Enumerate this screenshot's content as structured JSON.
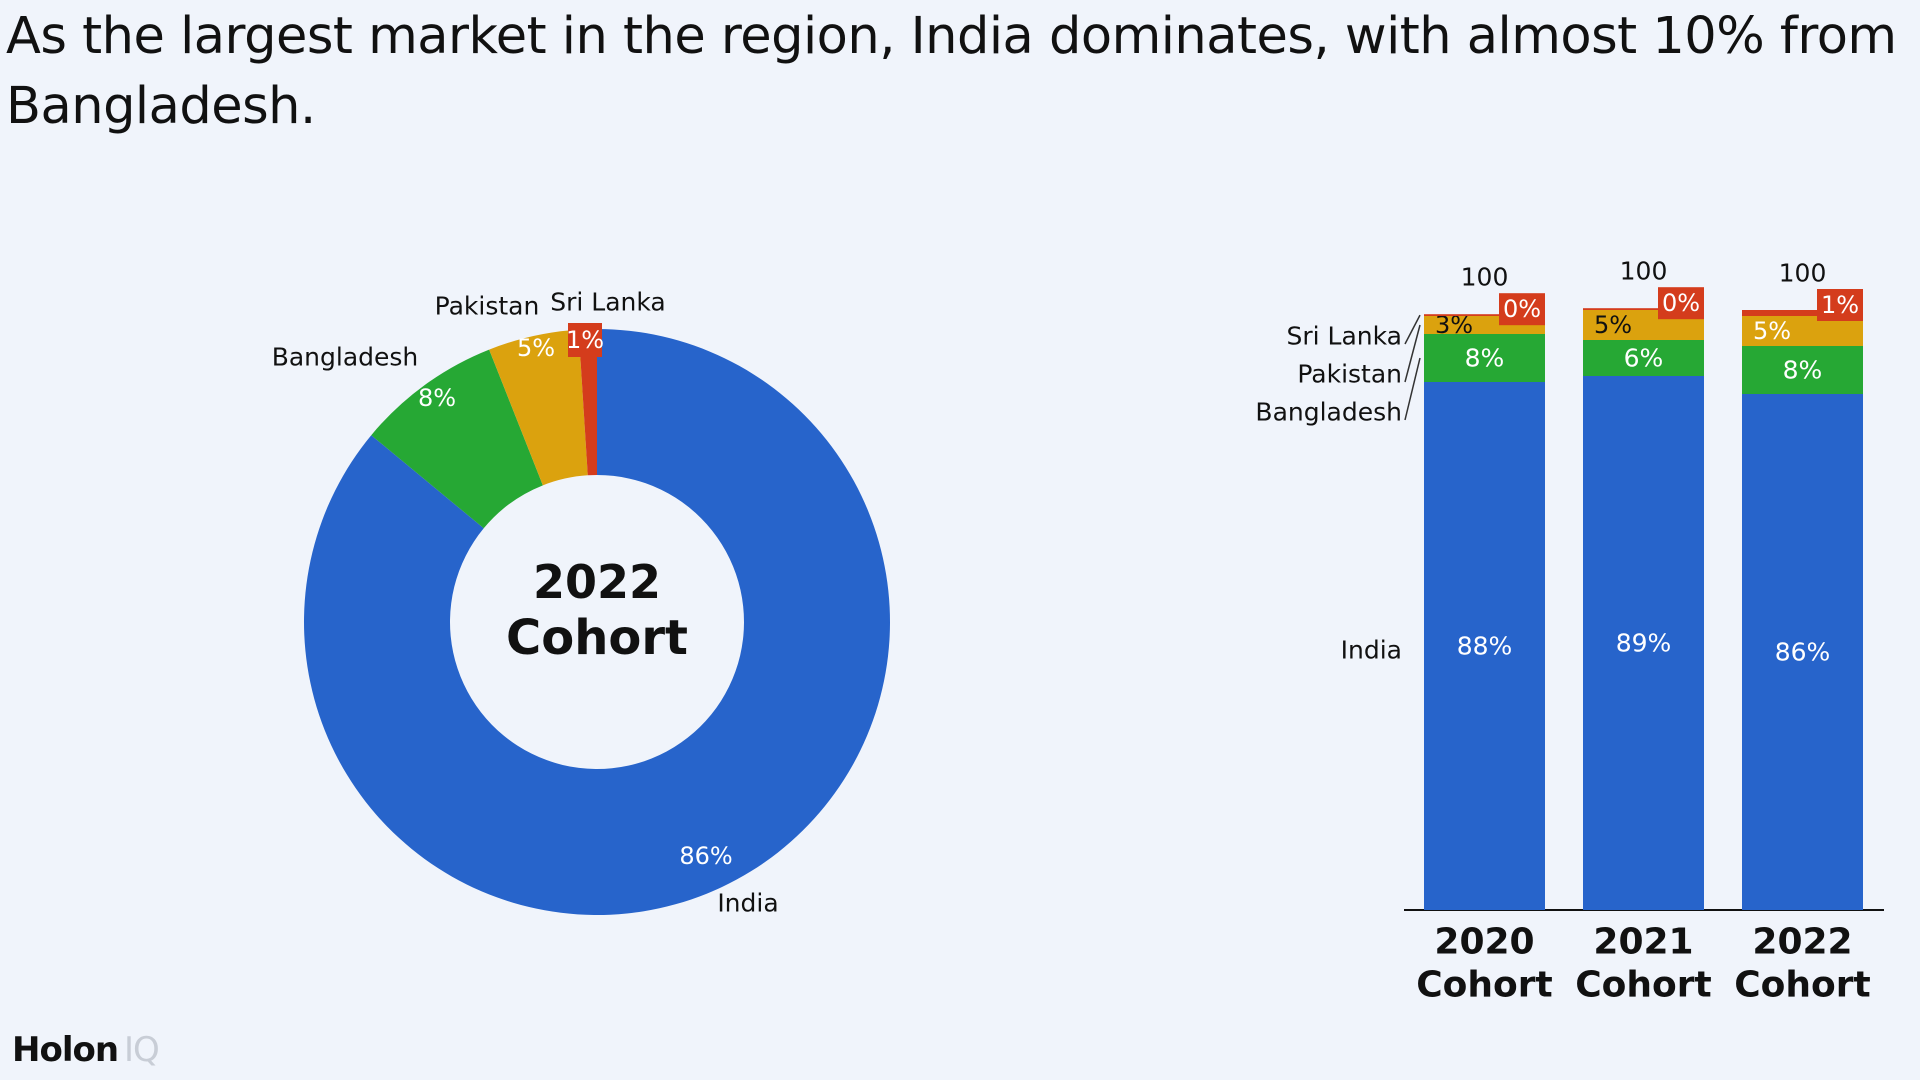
{
  "headline": "As the largest market in the region, India dominates, with almost 10% from Bangladesh.",
  "logo": {
    "primary": "Holon",
    "secondary": "IQ"
  },
  "colors": {
    "India": "#2764cb",
    "Bangladesh": "#26a834",
    "Pakistan": "#dba20e",
    "Sri Lanka": "#d43c1c"
  },
  "chart_data": [
    {
      "type": "pie",
      "center_label": [
        "2022",
        "Cohort"
      ],
      "slices": [
        {
          "name": "India",
          "value": 86,
          "label": "86%"
        },
        {
          "name": "Bangladesh",
          "value": 8,
          "label": "8%"
        },
        {
          "name": "Pakistan",
          "value": 5,
          "label": "5%"
        },
        {
          "name": "Sri Lanka",
          "value": 1,
          "label": "1%"
        }
      ]
    },
    {
      "type": "bar",
      "stacked": true,
      "categories": [
        [
          "2020",
          "Cohort"
        ],
        [
          "2021",
          "Cohort"
        ],
        [
          "2022",
          "Cohort"
        ]
      ],
      "totals": [
        "100",
        "100",
        "100"
      ],
      "ylim": [
        0,
        100
      ],
      "series": [
        {
          "name": "India",
          "values": [
            88,
            89,
            86
          ],
          "labels": [
            "88%",
            "89%",
            "86%"
          ]
        },
        {
          "name": "Bangladesh",
          "values": [
            8,
            6,
            8
          ],
          "labels": [
            "8%",
            "6%",
            "8%"
          ]
        },
        {
          "name": "Pakistan",
          "values": [
            3,
            5,
            5
          ],
          "labels": [
            "3%",
            "5%",
            "5%"
          ]
        },
        {
          "name": "Sri Lanka",
          "values": [
            0.3,
            0.3,
            1
          ],
          "labels": [
            "0%",
            "0%",
            "1%"
          ]
        }
      ],
      "series_labels_order": [
        "Sri Lanka",
        "Pakistan",
        "Bangladesh",
        "India"
      ]
    }
  ]
}
